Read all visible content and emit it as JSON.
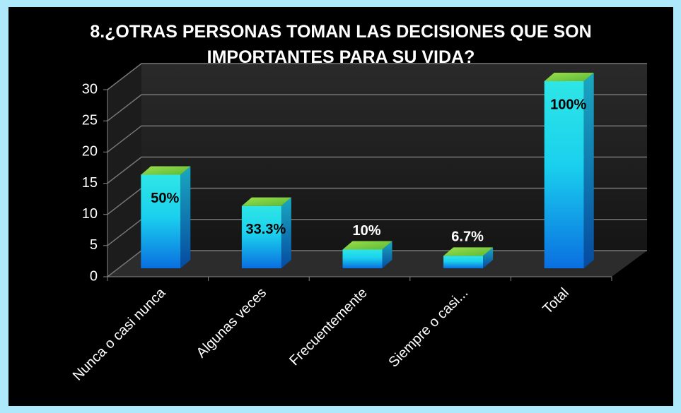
{
  "chart_data": {
    "type": "bar3d",
    "title": "8.¿OTRAS PERSONAS TOMAN LAS DECISIONES QUE SON IMPORTANTES PARA SU VIDA?",
    "categories": [
      "Nunca o casi nunca",
      "Algunas veces",
      "Frecuentemente",
      "Siempre o casi...",
      "Total"
    ],
    "values": [
      15,
      10,
      3,
      2,
      30
    ],
    "labels": [
      "50%",
      "33.3%",
      "10%",
      "6.7%",
      "100%"
    ],
    "ylim": [
      0,
      30
    ],
    "yticks": [
      0,
      5,
      10,
      15,
      20,
      25,
      30
    ],
    "grid": true
  }
}
